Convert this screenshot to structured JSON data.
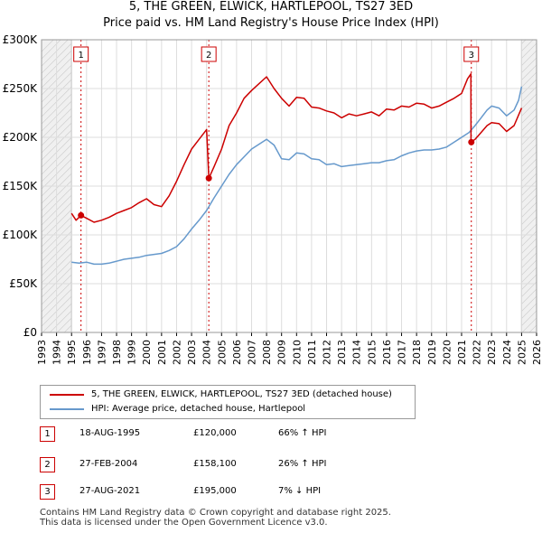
{
  "colors": {
    "price": "#cc0000",
    "hpi": "#6699cc",
    "grid": "#dddddd",
    "shade": "#f0f0f0"
  },
  "chart_data": {
    "type": "line",
    "title": "5, THE GREEN, ELWICK, HARTLEPOOL, TS27 3ED",
    "subtitle": "Price paid vs. HM Land Registry's House Price Index (HPI)",
    "xlim": [
      1993,
      2026
    ],
    "ylim": [
      0,
      300000
    ],
    "x_ticks": [
      "1993",
      "1994",
      "1995",
      "1996",
      "1997",
      "1998",
      "1999",
      "2000",
      "2001",
      "2002",
      "2003",
      "2004",
      "2005",
      "2006",
      "2007",
      "2008",
      "2009",
      "2010",
      "2011",
      "2012",
      "2013",
      "2014",
      "2015",
      "2016",
      "2017",
      "2018",
      "2019",
      "2020",
      "2021",
      "2022",
      "2023",
      "2024",
      "2025",
      "2026"
    ],
    "y_ticks": [
      {
        "value": 0,
        "label": "£0"
      },
      {
        "value": 50000,
        "label": "£50K"
      },
      {
        "value": 100000,
        "label": "£100K"
      },
      {
        "value": 150000,
        "label": "£150K"
      },
      {
        "value": 200000,
        "label": "£200K"
      },
      {
        "value": 250000,
        "label": "£250K"
      },
      {
        "value": 300000,
        "label": "£300K"
      }
    ],
    "shaded_ranges": [
      [
        1993,
        1995.0
      ],
      [
        2025.0,
        2026
      ]
    ],
    "series": [
      {
        "name": "5, THE GREEN, ELWICK, HARTLEPOOL, TS27 3ED (detached house)",
        "color": "#cc0000",
        "x": [
          1995.0,
          1995.3,
          1995.63,
          1996.0,
          1996.5,
          1997.0,
          1997.5,
          1998.0,
          1998.5,
          1999.0,
          1999.5,
          2000.0,
          2000.5,
          2001.0,
          2001.5,
          2002.0,
          2002.5,
          2003.0,
          2003.5,
          2004.0,
          2004.15,
          2004.5,
          2005.0,
          2005.5,
          2006.0,
          2006.5,
          2007.0,
          2007.5,
          2008.0,
          2008.5,
          2009.0,
          2009.5,
          2010.0,
          2010.5,
          2011.0,
          2011.5,
          2012.0,
          2012.5,
          2013.0,
          2013.5,
          2014.0,
          2014.5,
          2015.0,
          2015.5,
          2016.0,
          2016.5,
          2017.0,
          2017.5,
          2018.0,
          2018.5,
          2019.0,
          2019.5,
          2020.0,
          2020.5,
          2021.0,
          2021.4,
          2021.62,
          2021.63,
          2021.9,
          2022.3,
          2022.7,
          2023.0,
          2023.5,
          2024.0,
          2024.5,
          2025.0
        ],
        "y": [
          122000,
          115000,
          120000,
          117000,
          113000,
          115000,
          118000,
          122000,
          125000,
          128000,
          133000,
          137000,
          131000,
          129000,
          140000,
          155000,
          172000,
          188000,
          198000,
          208000,
          158100,
          170000,
          188000,
          212000,
          225000,
          240000,
          248000,
          255000,
          262000,
          250000,
          240000,
          232000,
          241000,
          240000,
          231000,
          230000,
          227000,
          225000,
          220000,
          224000,
          222000,
          224000,
          226000,
          222000,
          229000,
          228000,
          232000,
          231000,
          235000,
          234000,
          230000,
          232000,
          236000,
          240000,
          245000,
          260000,
          265000,
          195000,
          198000,
          205000,
          212000,
          215000,
          214000,
          206000,
          212000,
          230000
        ]
      },
      {
        "name": "HPI: Average price, detached house, Hartlepool",
        "color": "#6699cc",
        "x": [
          1995.0,
          1995.5,
          1996.0,
          1996.5,
          1997.0,
          1997.5,
          1998.0,
          1998.5,
          1999.0,
          1999.5,
          2000.0,
          2000.5,
          2001.0,
          2001.5,
          2002.0,
          2002.5,
          2003.0,
          2003.5,
          2004.0,
          2004.5,
          2005.0,
          2005.5,
          2006.0,
          2006.5,
          2007.0,
          2007.5,
          2008.0,
          2008.5,
          2009.0,
          2009.5,
          2010.0,
          2010.5,
          2011.0,
          2011.5,
          2012.0,
          2012.5,
          2013.0,
          2013.5,
          2014.0,
          2014.5,
          2015.0,
          2015.5,
          2016.0,
          2016.5,
          2017.0,
          2017.5,
          2018.0,
          2018.5,
          2019.0,
          2019.5,
          2020.0,
          2020.5,
          2021.0,
          2021.5,
          2021.9,
          2022.3,
          2022.7,
          2023.0,
          2023.5,
          2024.0,
          2024.5,
          2024.8,
          2025.0
        ],
        "y": [
          72000,
          71000,
          72000,
          70000,
          70000,
          71000,
          73000,
          75000,
          76000,
          77000,
          79000,
          80000,
          81000,
          84000,
          88000,
          96000,
          106000,
          115000,
          125000,
          138000,
          150000,
          162000,
          172000,
          180000,
          188000,
          193000,
          198000,
          192000,
          178000,
          177000,
          184000,
          183000,
          178000,
          177000,
          172000,
          173000,
          170000,
          171000,
          172000,
          173000,
          174000,
          174000,
          176000,
          177000,
          181000,
          184000,
          186000,
          187000,
          187000,
          188000,
          190000,
          195000,
          200000,
          205000,
          212000,
          220000,
          228000,
          232000,
          230000,
          222000,
          228000,
          238000,
          252000
        ]
      }
    ],
    "sales": [
      {
        "label": "1",
        "x": 1995.63,
        "y": 120000
      },
      {
        "label": "2",
        "x": 2004.15,
        "y": 158100
      },
      {
        "label": "3",
        "x": 2021.65,
        "y": 195000
      }
    ]
  },
  "legend": {
    "price_label": "5, THE GREEN, ELWICK, HARTLEPOOL, TS27 3ED (detached house)",
    "hpi_label": "HPI: Average price, detached house, Hartlepool"
  },
  "sales_table": [
    {
      "num": "1",
      "date": "18-AUG-1995",
      "price": "£120,000",
      "hpi": "66% ↑ HPI"
    },
    {
      "num": "2",
      "date": "27-FEB-2004",
      "price": "£158,100",
      "hpi": "26% ↑ HPI"
    },
    {
      "num": "3",
      "date": "27-AUG-2021",
      "price": "£195,000",
      "hpi": "7% ↓ HPI"
    }
  ],
  "footer": {
    "line1": "Contains HM Land Registry data © Crown copyright and database right 2025.",
    "line2": "This data is licensed under the Open Government Licence v3.0."
  }
}
